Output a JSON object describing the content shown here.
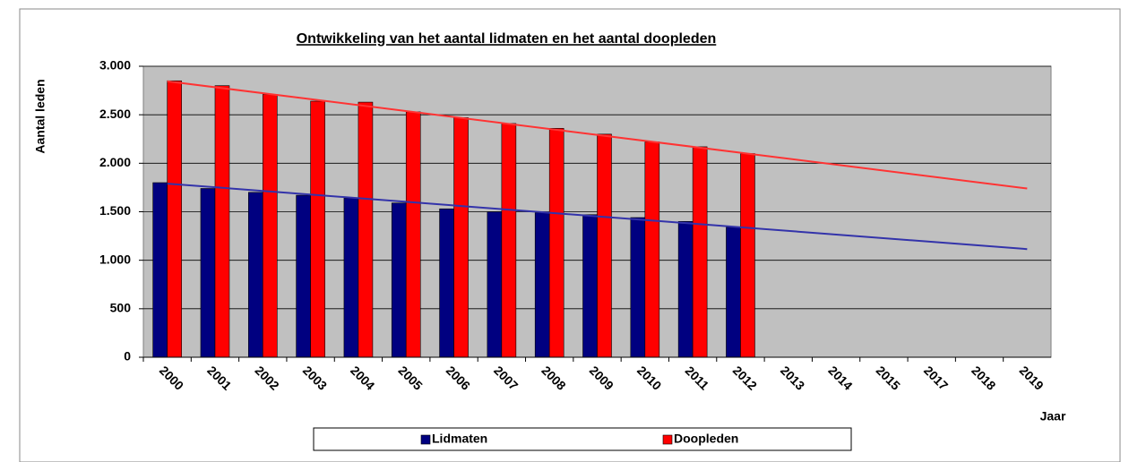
{
  "chart_data": {
    "type": "bar",
    "title": "Ontwikkeling van het aantal lidmaten en het aantal doopleden",
    "y_label": "Aantal leden",
    "x_label": "Jaar",
    "categories": [
      "2000",
      "2001",
      "2002",
      "2003",
      "2004",
      "2005",
      "2006",
      "2007",
      "2008",
      "2009",
      "2010",
      "2011",
      "2012",
      "2013",
      "2014",
      "2015",
      "2017",
      "2018",
      "2019"
    ],
    "series": [
      {
        "name": "Lidmaten",
        "color": "#000080",
        "values": [
          1800,
          1740,
          1700,
          1670,
          1640,
          1590,
          1530,
          1500,
          1490,
          1470,
          1440,
          1400,
          1340,
          null,
          null,
          null,
          null,
          null,
          null
        ],
        "trend": [
          1790,
          1115
        ],
        "trend_color": "#3333aa"
      },
      {
        "name": "Doopleden",
        "color": "#ff0000",
        "values": [
          2850,
          2800,
          2710,
          2640,
          2630,
          2530,
          2470,
          2410,
          2360,
          2300,
          2220,
          2170,
          2100,
          null,
          null,
          null,
          null,
          null,
          null
        ],
        "trend": [
          2845,
          1740
        ],
        "trend_color": "#ff3333"
      }
    ],
    "ylim": [
      0,
      3000
    ],
    "yticks": [
      0,
      500,
      {
        "value": 1000,
        "label": "1.000"
      },
      {
        "value": 1500,
        "label": "1.500"
      },
      {
        "value": 2000,
        "label": "2.000"
      },
      {
        "value": 2500,
        "label": "2.500"
      },
      {
        "value": 3000,
        "label": "3.000"
      }
    ],
    "grid": true,
    "plot_background": "#c0c0c0",
    "legend": "bottom"
  }
}
